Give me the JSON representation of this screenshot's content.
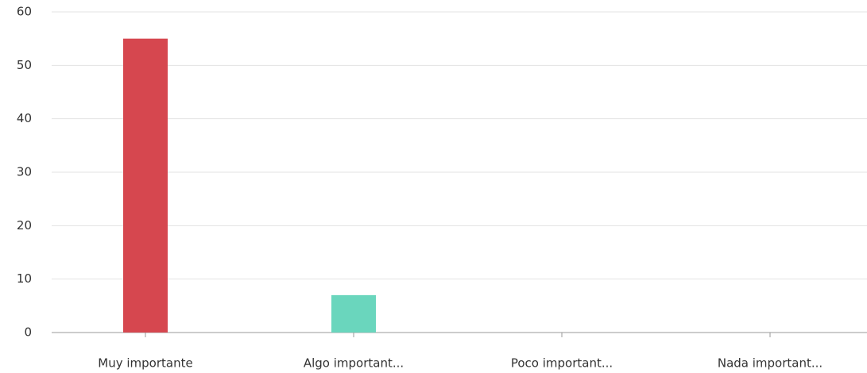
{
  "chart_data": {
    "type": "bar",
    "categories": [
      "Muy importante",
      "Algo important...",
      "Poco important...",
      "Nada important..."
    ],
    "values": [
      55,
      7,
      0,
      0
    ],
    "colors": [
      "#d6474f",
      "#6ad6bd"
    ],
    "ylim": [
      0,
      60
    ],
    "yticks": [
      0,
      10,
      20,
      30,
      40,
      50,
      60
    ],
    "grid": true
  }
}
